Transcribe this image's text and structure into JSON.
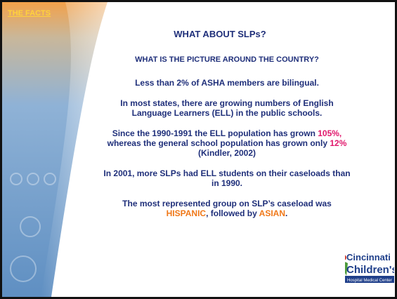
{
  "header": {
    "link": "THE FACTS",
    "title": "WHAT ABOUT SLPs?",
    "subtitle": "WHAT IS THE PICTURE AROUND THE COUNTRY?"
  },
  "paragraphs": [
    {
      "runs": [
        {
          "text": "Less than 2% of ASHA members are bilingual."
        }
      ]
    },
    {
      "runs": [
        {
          "text": "In most states, there are growing numbers of English Language Learners (ELL) in the public schools."
        }
      ]
    },
    {
      "runs": [
        {
          "text": "Since the 1990-1991 the ELL population has grown "
        },
        {
          "text": "105%,",
          "color": "#e0186c"
        },
        {
          "text": " whereas the general school population has grown only "
        },
        {
          "text": "12%",
          "color": "#e0186c"
        },
        {
          "text": " (Kindler, 2002)"
        }
      ]
    },
    {
      "runs": [
        {
          "text": "In 2001, more SLPs had ELL students on their caseloads than in 1990."
        }
      ]
    },
    {
      "runs": [
        {
          "text": "The most represented group on SLP’s caseload was "
        },
        {
          "text": "HISPANIC",
          "color": "#f07818"
        },
        {
          "text": ", followed by "
        },
        {
          "text": "ASIAN",
          "color": "#f07818"
        },
        {
          "text": "."
        }
      ]
    }
  ],
  "logo": {
    "line1": "Cincinnati",
    "line2": "Children's",
    "line3": "Hospital Medical Center"
  }
}
